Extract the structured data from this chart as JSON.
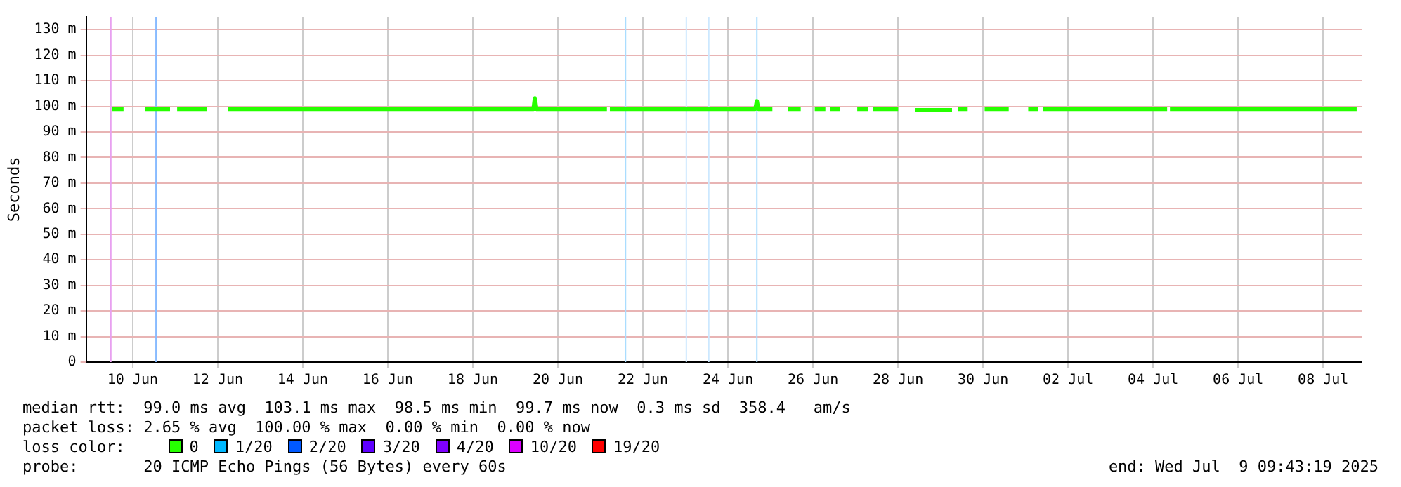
{
  "chart_data": {
    "type": "line",
    "ylabel": "Seconds",
    "legend_title": "loss color:",
    "legend": "bottom left",
    "grid": true,
    "marker": "none",
    "line_style": "solid",
    "x": [
      "2025-06-10T00:25",
      "2025-06-10T06:50",
      "2025-06-10T12:00",
      "2025-06-10T18:50",
      "2025-06-11T09:05",
      "2025-06-11T10:45",
      "2025-06-11T13:05",
      "2025-06-12T05:55",
      "2025-06-12T12:15",
      "2025-06-12T17:50",
      "2025-06-12T20:15",
      "2025-06-12T22:40",
      "2025-06-15T12:05",
      "2025-06-17T04:00",
      "2025-06-19T22:15",
      "2025-06-19T23:00",
      "2025-06-19T23:50",
      "2025-06-21T15:40",
      "2025-06-21T16:30",
      "2025-06-21T17:20",
      "2025-06-21T18:55",
      "2025-06-21T22:05",
      "2025-06-23T19:35",
      "2025-06-25T03:30",
      "2025-06-25T04:20",
      "2025-06-25T05:05",
      "2025-06-25T13:05",
      "2025-06-25T17:00",
      "2025-06-25T21:55",
      "2025-06-26T05:05",
      "2025-06-26T09:50",
      "2025-06-26T13:00",
      "2025-06-26T19:00",
      "2025-06-26T20:00",
      "2025-06-26T21:50",
      "2025-06-27T03:25",
      "2025-06-27T09:00",
      "2025-06-27T13:00",
      "2025-06-27T19:00",
      "2025-06-27T20:00",
      "2025-06-27T21:50",
      "2025-06-28T12:05",
      "2025-06-28T16:55",
      "2025-06-28T21:40",
      "2025-06-29T18:30",
      "2025-06-29T20:05",
      "2025-06-29T21:40",
      "2025-06-30T03:20",
      "2025-06-30T08:05",
      "2025-06-30T12:55",
      "2025-07-01T02:30",
      "2025-07-01T08:55",
      "2025-07-01T13:30",
      "2025-07-01T19:00",
      "2025-07-01T20:00",
      "2025-07-01T21:40",
      "2025-07-04T19:55",
      "2025-07-04T20:40",
      "2025-07-04T21:30",
      "2025-07-07T03:00",
      "2025-07-09T06:55"
    ],
    "series": [
      {
        "name": "0",
        "color": "#26ff00",
        "values": [
          99,
          99,
          null,
          99,
          99,
          null,
          99,
          99,
          null,
          99,
          99,
          99,
          99,
          99,
          99,
          103.1,
          99,
          99,
          null,
          99,
          99,
          99,
          99,
          99,
          102,
          99,
          99,
          null,
          99,
          99,
          null,
          99,
          99,
          null,
          99,
          99,
          null,
          99,
          99,
          null,
          99,
          99,
          null,
          98.5,
          98.5,
          null,
          99,
          99,
          null,
          99,
          99,
          null,
          99,
          99,
          null,
          99,
          99,
          null,
          99,
          99,
          99
        ]
      },
      {
        "name": "1/20",
        "color": "#00b8ff",
        "values": [
          null,
          null,
          null,
          null,
          null,
          null,
          null,
          null,
          null,
          null,
          null,
          null,
          null,
          null,
          null,
          null,
          null,
          null,
          null,
          null,
          null,
          null,
          null,
          null,
          null,
          null,
          null,
          null,
          null,
          null,
          null,
          null,
          null,
          null,
          null,
          null,
          null,
          null,
          null,
          null,
          null,
          null,
          null,
          null,
          null,
          null,
          null,
          null,
          null,
          null,
          null,
          null,
          null,
          null,
          null,
          null,
          null,
          null,
          null,
          null,
          null
        ]
      },
      {
        "name": "2/20",
        "color": "#0059ff",
        "values": [
          null,
          null,
          null,
          null,
          null,
          null,
          null,
          null,
          null,
          null,
          null,
          null,
          null,
          null,
          null,
          null,
          null,
          null,
          null,
          null,
          null,
          null,
          null,
          null,
          null,
          null,
          null,
          null,
          null,
          null,
          null,
          null,
          null,
          null,
          null,
          null,
          null,
          null,
          null,
          null,
          null,
          null,
          null,
          null,
          null,
          null,
          null,
          null,
          null,
          null,
          null,
          null,
          null,
          null,
          null,
          null,
          null,
          null,
          null,
          null,
          null
        ]
      },
      {
        "name": "3/20",
        "color": "#5e00ff",
        "values": [
          null,
          null,
          null,
          null,
          null,
          null,
          null,
          null,
          null,
          null,
          null,
          null,
          null,
          null,
          null,
          null,
          null,
          null,
          null,
          null,
          null,
          null,
          null,
          null,
          null,
          null,
          null,
          null,
          null,
          null,
          null,
          null,
          null,
          null,
          null,
          null,
          null,
          null,
          null,
          null,
          null,
          null,
          null,
          null,
          null,
          null,
          null,
          null,
          null,
          null,
          null,
          null,
          null,
          null,
          null,
          null,
          null,
          null,
          null,
          null,
          null
        ]
      },
      {
        "name": "4/20",
        "color": "#7e00ff",
        "values": [
          null,
          null,
          null,
          null,
          null,
          null,
          null,
          null,
          null,
          null,
          null,
          null,
          null,
          null,
          null,
          null,
          null,
          null,
          null,
          null,
          null,
          null,
          null,
          null,
          null,
          null,
          null,
          null,
          null,
          null,
          null,
          null,
          null,
          null,
          null,
          null,
          null,
          null,
          null,
          null,
          null,
          null,
          null,
          null,
          null,
          null,
          null,
          null,
          null,
          null,
          null,
          null,
          null,
          null,
          null,
          null,
          null,
          null,
          null,
          null,
          null
        ]
      },
      {
        "name": "10/20",
        "color": "#dd00ff",
        "values": [
          null,
          null,
          null,
          null,
          null,
          null,
          null,
          null,
          null,
          null,
          null,
          null,
          null,
          null,
          null,
          null,
          null,
          null,
          null,
          null,
          null,
          null,
          null,
          null,
          null,
          null,
          null,
          null,
          null,
          null,
          null,
          null,
          null,
          null,
          null,
          null,
          null,
          null,
          null,
          null,
          null,
          null,
          null,
          null,
          null,
          null,
          null,
          null,
          null,
          null,
          null,
          null,
          null,
          null,
          null,
          null,
          null,
          null,
          null,
          null,
          null
        ]
      },
      {
        "name": "19/20",
        "color": "#ff0000",
        "values": [
          null,
          null,
          null,
          null,
          null,
          null,
          null,
          null,
          null,
          null,
          null,
          null,
          null,
          null,
          null,
          null,
          null,
          null,
          null,
          null,
          null,
          null,
          null,
          null,
          null,
          null,
          null,
          null,
          null,
          null,
          null,
          null,
          null,
          null,
          null,
          null,
          null,
          null,
          null,
          null,
          null,
          null,
          null,
          null,
          null,
          null,
          null,
          null,
          null,
          null,
          null,
          null,
          null,
          null,
          null,
          null,
          null,
          null,
          null,
          null,
          null
        ]
      }
    ],
    "xlim": [
      "2025-06-09T09:43",
      "2025-07-09T09:43"
    ],
    "xticks": [
      {
        "value": "2025-06-10T12:00",
        "label": "10 Jun"
      },
      {
        "value": "2025-06-12T12:00",
        "label": "12 Jun"
      },
      {
        "value": "2025-06-14T12:00",
        "label": "14 Jun"
      },
      {
        "value": "2025-06-16T12:00",
        "label": "16 Jun"
      },
      {
        "value": "2025-06-18T12:00",
        "label": "18 Jun"
      },
      {
        "value": "2025-06-20T12:00",
        "label": "20 Jun"
      },
      {
        "value": "2025-06-22T12:00",
        "label": "22 Jun"
      },
      {
        "value": "2025-06-24T12:00",
        "label": "24 Jun"
      },
      {
        "value": "2025-06-26T12:00",
        "label": "26 Jun"
      },
      {
        "value": "2025-06-28T12:00",
        "label": "28 Jun"
      },
      {
        "value": "2025-06-30T12:00",
        "label": "30 Jun"
      },
      {
        "value": "2025-07-02T12:00",
        "label": "02 Jul"
      },
      {
        "value": "2025-07-04T12:00",
        "label": "04 Jul"
      },
      {
        "value": "2025-07-06T12:00",
        "label": "06 Jul"
      },
      {
        "value": "2025-07-08T12:00",
        "label": "08 Jul"
      }
    ],
    "ylim": [
      0,
      135
    ],
    "yticks": [
      0,
      {
        "value": 10,
        "label": "10 m"
      },
      {
        "value": 20,
        "label": "20 m"
      },
      {
        "value": 30,
        "label": "30 m"
      },
      {
        "value": 40,
        "label": "40 m"
      },
      {
        "value": 50,
        "label": "50 m"
      },
      {
        "value": 60,
        "label": "60 m"
      },
      {
        "value": 70,
        "label": "70 m"
      },
      {
        "value": 80,
        "label": "80 m"
      },
      {
        "value": 90,
        "label": "90 m"
      },
      {
        "value": 100,
        "label": "100 m"
      },
      {
        "value": 110,
        "label": "110 m"
      },
      {
        "value": 120,
        "label": "120 m"
      },
      {
        "value": 130,
        "label": "130 m"
      }
    ],
    "ref_lines": [
      {
        "axis": "x",
        "value": "2025-06-09T23:40",
        "color": "#e8a0f0"
      },
      {
        "axis": "x",
        "value": "2025-06-11T01:10",
        "color": "#88bbff"
      },
      {
        "axis": "x",
        "value": "2025-06-22T02:10",
        "color": "#aaddff"
      },
      {
        "axis": "x",
        "value": "2025-06-23T12:30",
        "color": "#cce8ff"
      },
      {
        "axis": "x",
        "value": "2025-06-24T01:10",
        "color": "#cce8ff"
      },
      {
        "axis": "x",
        "value": "2025-06-25T04:20",
        "color": "#aaddff"
      }
    ],
    "annotations": [
      "median rtt:  99.0 ms avg  103.1 ms max  98.5 ms min  99.7 ms now  0.3 ms sd  358.4   am/s",
      "packet loss: 2.65 % avg  100.00 % max  0.00 % min  0.00 % now",
      "probe:       20 ICMP Echo Pings (56 Bytes) every 60s",
      "end: Wed Jul  9 09:43:19 2025"
    ]
  }
}
